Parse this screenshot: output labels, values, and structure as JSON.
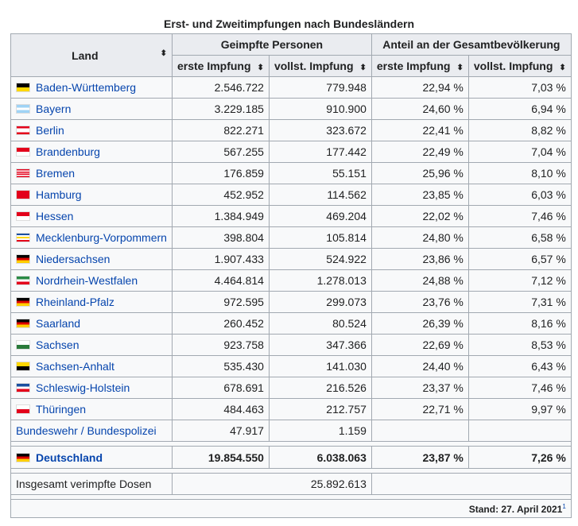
{
  "caption": "Erst- und Zweitimpfungen nach Bundesländern",
  "headers": {
    "land": "Land",
    "geimpfte": "Geimpfte Personen",
    "anteil": "Anteil an der Gesamtbevölkerung",
    "erste": "erste Impfung",
    "vollst": "vollst. Impfung",
    "sort_icon": "⬍"
  },
  "rows": [
    {
      "land": "Baden-Württemberg",
      "e": "2.546.722",
      "v": "779.948",
      "pe": "22,94 %",
      "pv": "7,03 %",
      "flag": [
        "#000000",
        "#ffd700"
      ]
    },
    {
      "land": "Bayern",
      "e": "3.229.185",
      "v": "910.900",
      "pe": "24,60 %",
      "pv": "6,94 %",
      "flag": [
        "#9fd3f5",
        "#ffffff",
        "#9fd3f5"
      ]
    },
    {
      "land": "Berlin",
      "e": "822.271",
      "v": "323.672",
      "pe": "22,41 %",
      "pv": "8,82 %",
      "flag": [
        "#e3001b",
        "#ffffff",
        "#ffffff",
        "#e3001b"
      ]
    },
    {
      "land": "Brandenburg",
      "e": "567.255",
      "v": "177.442",
      "pe": "22,49 %",
      "pv": "7,04 %",
      "flag": [
        "#e3001b",
        "#ffffff"
      ]
    },
    {
      "land": "Bremen",
      "e": "176.859",
      "v": "55.151",
      "pe": "25,96 %",
      "pv": "8,10 %",
      "flag": [
        "#e3001b",
        "#ffffff",
        "#e3001b",
        "#ffffff",
        "#e3001b",
        "#ffffff",
        "#e3001b"
      ]
    },
    {
      "land": "Hamburg",
      "e": "452.952",
      "v": "114.562",
      "pe": "23,85 %",
      "pv": "6,03 %",
      "flag": [
        "#e3001b"
      ]
    },
    {
      "land": "Hessen",
      "e": "1.384.949",
      "v": "469.204",
      "pe": "22,02 %",
      "pv": "7,46 %",
      "flag": [
        "#e3001b",
        "#ffffff"
      ]
    },
    {
      "land": "Mecklenburg-Vorpommern",
      "e": "398.804",
      "v": "105.814",
      "pe": "24,80 %",
      "pv": "6,58 %",
      "flag": [
        "#1a4fa0",
        "#ffffff",
        "#ffd700",
        "#ffffff",
        "#e3001b"
      ]
    },
    {
      "land": "Niedersachsen",
      "e": "1.907.433",
      "v": "524.922",
      "pe": "23,86 %",
      "pv": "6,57 %",
      "flag": [
        "#000000",
        "#dd0000",
        "#ffce00"
      ]
    },
    {
      "land": "Nordrhein-Westfalen",
      "e": "4.464.814",
      "v": "1.278.013",
      "pe": "24,88 %",
      "pv": "7,12 %",
      "flag": [
        "#2a8a45",
        "#ffffff",
        "#e3001b"
      ]
    },
    {
      "land": "Rheinland-Pfalz",
      "e": "972.595",
      "v": "299.073",
      "pe": "23,76 %",
      "pv": "7,31 %",
      "flag": [
        "#000000",
        "#dd0000",
        "#ffce00"
      ]
    },
    {
      "land": "Saarland",
      "e": "260.452",
      "v": "80.524",
      "pe": "26,39 %",
      "pv": "8,16 %",
      "flag": [
        "#000000",
        "#dd0000",
        "#ffce00"
      ]
    },
    {
      "land": "Sachsen",
      "e": "923.758",
      "v": "347.366",
      "pe": "22,69 %",
      "pv": "8,53 %",
      "flag": [
        "#ffffff",
        "#2a7a3a"
      ]
    },
    {
      "land": "Sachsen-Anhalt",
      "e": "535.430",
      "v": "141.030",
      "pe": "24,40 %",
      "pv": "6,43 %",
      "flag": [
        "#ffd700",
        "#000000"
      ]
    },
    {
      "land": "Schleswig-Holstein",
      "e": "678.691",
      "v": "216.526",
      "pe": "23,37 %",
      "pv": "7,46 %",
      "flag": [
        "#1a4fa0",
        "#ffffff",
        "#e3001b"
      ]
    },
    {
      "land": "Thüringen",
      "e": "484.463",
      "v": "212.757",
      "pe": "22,71 %",
      "pv": "9,97 %",
      "flag": [
        "#ffffff",
        "#e3001b"
      ]
    }
  ],
  "bundeswehr": {
    "land": "Bundeswehr / Bundespolizei",
    "e": "47.917",
    "v": "1.159"
  },
  "total": {
    "land": "Deutschland",
    "e": "19.854.550",
    "v": "6.038.063",
    "pe": "23,87 %",
    "pv": "7,26 %",
    "flag": [
      "#000000",
      "#dd0000",
      "#ffce00"
    ]
  },
  "doses": {
    "label": "Insgesamt verimpfte Dosen",
    "value": "25.892.613"
  },
  "stand": {
    "text": "Stand: 27. April 2021",
    "ref": "1"
  }
}
